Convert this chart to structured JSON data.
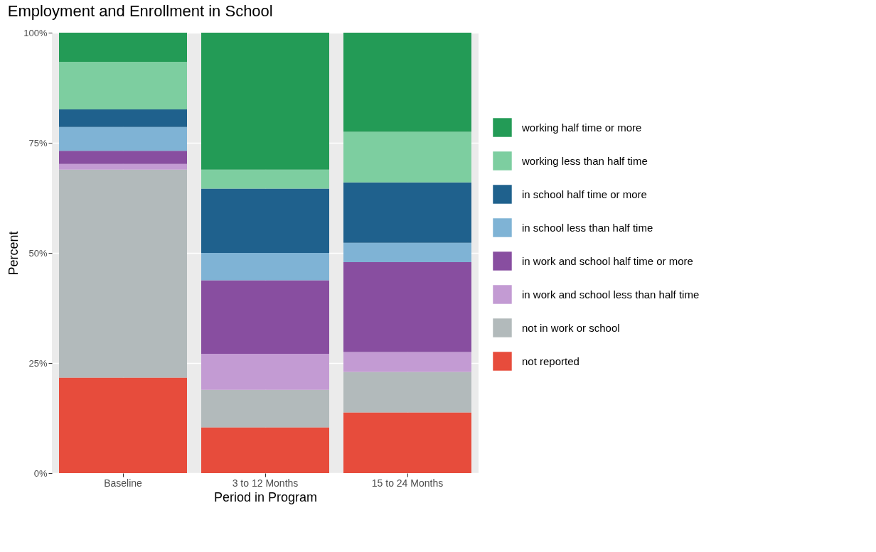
{
  "chart_data": {
    "type": "bar",
    "title": "Employment and Enrollment in School",
    "xlabel": "Period in Program",
    "ylabel": "Percent",
    "stacked": true,
    "categories": [
      "Baseline",
      "3 to 12 Months",
      "15 to 24 Months"
    ],
    "series": [
      {
        "name": "not reported",
        "color": "#e74c3c",
        "values": [
          21.7,
          10.4,
          13.8
        ]
      },
      {
        "name": "not in work or school",
        "color": "#b2babb",
        "values": [
          47.2,
          8.5,
          9.2
        ]
      },
      {
        "name": "in work and school less than half time",
        "color": "#c39bd3",
        "values": [
          1.3,
          8.2,
          4.5
        ]
      },
      {
        "name": "in work and school half time or more",
        "color": "#884ea0",
        "values": [
          3.0,
          16.7,
          20.4
        ]
      },
      {
        "name": "in school less than half time",
        "color": "#7fb3d5",
        "values": [
          5.4,
          6.2,
          4.4
        ]
      },
      {
        "name": "in school half time or more",
        "color": "#1f618d",
        "values": [
          4.0,
          14.6,
          13.7
        ]
      },
      {
        "name": "working less than half time",
        "color": "#7dcea0",
        "values": [
          10.8,
          4.3,
          11.5
        ]
      },
      {
        "name": "working half time or more",
        "color": "#239b56",
        "values": [
          6.6,
          31.1,
          22.5
        ]
      }
    ],
    "ylim": [
      0,
      100
    ],
    "yticks": [
      {
        "value": 0,
        "label": "0%"
      },
      {
        "value": 25,
        "label": "25%"
      },
      {
        "value": 50,
        "label": "50%"
      },
      {
        "value": 75,
        "label": "75%"
      },
      {
        "value": 100,
        "label": "100%"
      }
    ],
    "grid": true,
    "legend": "right"
  }
}
